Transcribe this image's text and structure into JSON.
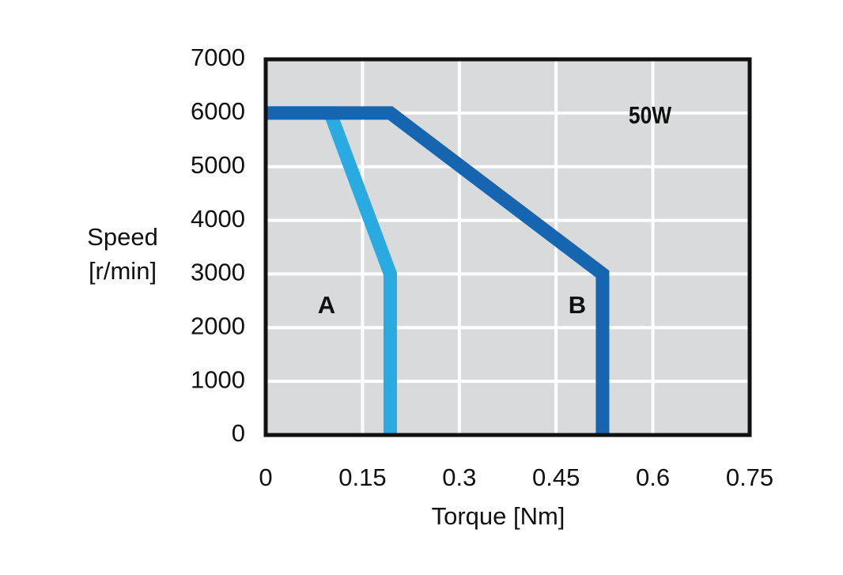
{
  "chart_data": {
    "type": "line",
    "annotation": "50W",
    "xlabel": "Torque [Nm]",
    "ylabel": [
      "Speed",
      "[r/min]"
    ],
    "xlim": [
      0,
      0.75
    ],
    "xticks": [
      0,
      0.15,
      0.3,
      0.45,
      0.6,
      0.75
    ],
    "ylim": [
      0,
      7000
    ],
    "yticks": [
      0,
      1000,
      2000,
      3000,
      4000,
      5000,
      6000,
      7000
    ],
    "grid": true,
    "series": [
      {
        "name": "A",
        "color": "#29abe2",
        "x": [
          0,
          0.1,
          0.193,
          0.193
        ],
        "values": [
          6000,
          6000,
          3000,
          0
        ]
      },
      {
        "name": "B",
        "color": "#1565b0",
        "x": [
          0,
          0.193,
          0.522,
          0.522
        ],
        "values": [
          6000,
          6000,
          3000,
          0
        ]
      }
    ]
  }
}
